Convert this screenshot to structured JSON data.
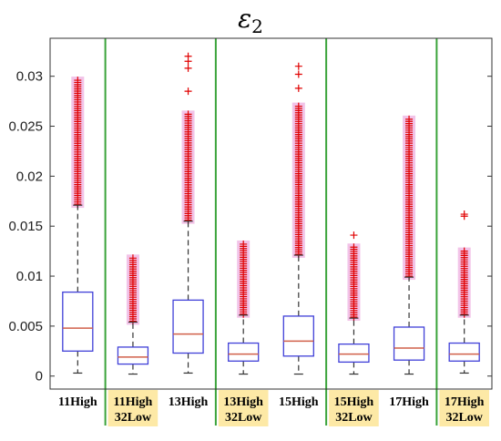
{
  "chart_data": {
    "type": "box",
    "title": "ε",
    "title_subscript": "2",
    "ylim": [
      -0.0013,
      0.0338
    ],
    "yticks": [
      0,
      0.005,
      0.01,
      0.015,
      0.02,
      0.025,
      0.03
    ],
    "ytick_labels": [
      "0",
      "0.005",
      "0.01",
      "0.015",
      "0.02",
      "0.025",
      "0.03"
    ],
    "grid": false,
    "categories": [
      {
        "lines": [
          "11High"
        ],
        "highlight": false
      },
      {
        "lines": [
          "11High",
          "32Low"
        ],
        "highlight": true
      },
      {
        "lines": [
          "13High"
        ],
        "highlight": false
      },
      {
        "lines": [
          "13High",
          "32Low"
        ],
        "highlight": true
      },
      {
        "lines": [
          "15High"
        ],
        "highlight": false
      },
      {
        "lines": [
          "15High",
          "32Low"
        ],
        "highlight": true
      },
      {
        "lines": [
          "17High"
        ],
        "highlight": false
      },
      {
        "lines": [
          "17High",
          "32Low"
        ],
        "highlight": true
      }
    ],
    "boxes": [
      {
        "whisker_low": 0.0003,
        "q1": 0.0025,
        "median": 0.0048,
        "q3": 0.0084,
        "whisker_high": 0.0171,
        "outliers_range": [
          0.0172,
          0.0296
        ],
        "isolated_outliers": []
      },
      {
        "whisker_low": 0.0002,
        "q1": 0.0012,
        "median": 0.0019,
        "q3": 0.0029,
        "whisker_high": 0.0054,
        "outliers_range": [
          0.0055,
          0.0118
        ],
        "isolated_outliers": []
      },
      {
        "whisker_low": 0.0003,
        "q1": 0.0023,
        "median": 0.0042,
        "q3": 0.0076,
        "whisker_high": 0.0155,
        "outliers_range": [
          0.0156,
          0.0262
        ],
        "isolated_outliers": [
          0.0285,
          0.0308,
          0.0315,
          0.032
        ]
      },
      {
        "whisker_low": 0.0002,
        "q1": 0.0015,
        "median": 0.0022,
        "q3": 0.0033,
        "whisker_high": 0.0061,
        "outliers_range": [
          0.0062,
          0.0132
        ],
        "isolated_outliers": []
      },
      {
        "whisker_low": 0.0002,
        "q1": 0.002,
        "median": 0.0035,
        "q3": 0.006,
        "whisker_high": 0.0121,
        "outliers_range": [
          0.0122,
          0.027
        ],
        "isolated_outliers": [
          0.0288,
          0.0302,
          0.031
        ]
      },
      {
        "whisker_low": 0.0002,
        "q1": 0.0014,
        "median": 0.0022,
        "q3": 0.0032,
        "whisker_high": 0.0058,
        "outliers_range": [
          0.0059,
          0.0129
        ],
        "isolated_outliers": [
          0.0141
        ]
      },
      {
        "whisker_low": 0.0002,
        "q1": 0.0016,
        "median": 0.0028,
        "q3": 0.0049,
        "whisker_high": 0.0099,
        "outliers_range": [
          0.01,
          0.0257
        ],
        "isolated_outliers": []
      },
      {
        "whisker_low": 0.0003,
        "q1": 0.0015,
        "median": 0.0022,
        "q3": 0.0033,
        "whisker_high": 0.0061,
        "outliers_range": [
          0.0062,
          0.0125
        ],
        "isolated_outliers": [
          0.016,
          0.0162
        ]
      }
    ],
    "separators_after": [
      0,
      2,
      4,
      6
    ],
    "colors": {
      "box": "#4040d8",
      "median": "#d0604a",
      "whisker": "#333333",
      "outlier": "#e00000",
      "outlier_halo": "#f0b8e4",
      "separator": "#3aa33a",
      "highlight": "#fde9a6"
    }
  }
}
